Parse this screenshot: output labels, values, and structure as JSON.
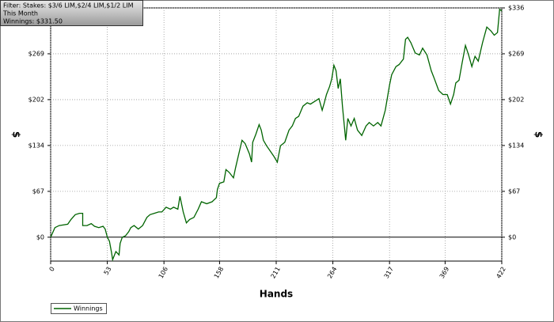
{
  "info": {
    "filter": "Filter: Stakes: $3/6 LIM,$2/4 LIM,$1/2 LIM",
    "period": "This Month",
    "winnings": "Winnings: $331.50"
  },
  "chart_data": {
    "type": "line",
    "x_label": "Hands",
    "y_label": "$",
    "x": [
      0,
      4,
      8,
      16,
      19,
      23,
      27,
      30,
      30,
      34,
      38,
      41,
      45,
      49,
      51,
      53,
      55,
      57,
      58,
      61,
      64,
      65,
      67,
      70,
      73,
      75,
      78,
      82,
      86,
      90,
      93,
      97,
      101,
      104,
      108,
      112,
      115,
      119,
      121,
      124,
      127,
      130,
      134,
      138,
      141,
      146,
      151,
      155,
      156,
      158,
      162,
      164,
      167,
      171,
      173,
      176,
      179,
      182,
      186,
      188,
      189,
      192,
      195,
      197,
      199,
      202,
      206,
      209,
      212,
      215,
      219,
      223,
      226,
      229,
      232,
      236,
      240,
      243,
      247,
      251,
      254,
      256,
      258,
      261,
      263,
      265,
      267,
      269,
      271,
      273,
      276,
      278,
      281,
      284,
      287,
      291,
      295,
      298,
      302,
      306,
      309,
      313,
      317,
      319,
      323,
      326,
      330,
      332,
      334,
      337,
      341,
      345,
      348,
      352,
      356,
      359,
      363,
      367,
      371,
      374,
      377,
      379,
      382,
      385,
      388,
      391,
      394,
      397,
      400,
      404,
      408,
      412,
      415,
      418,
      420,
      422
    ],
    "series": [
      {
        "name": "Winnings",
        "color": "#006400",
        "values": [
          0,
          14,
          17,
          19,
          26,
          33,
          35,
          35,
          17,
          17,
          20,
          16,
          14,
          16,
          12,
          0,
          -6,
          -23,
          -33,
          -21,
          -26,
          -9,
          0,
          2,
          8,
          14,
          17,
          12,
          17,
          29,
          33,
          35,
          37,
          37,
          44,
          41,
          44,
          41,
          60,
          37,
          21,
          26,
          29,
          41,
          52,
          49,
          52,
          58,
          70,
          79,
          81,
          99,
          95,
          87,
          102,
          122,
          142,
          137,
          122,
          110,
          139,
          151,
          165,
          157,
          142,
          134,
          125,
          118,
          110,
          134,
          139,
          157,
          163,
          174,
          177,
          192,
          197,
          195,
          199,
          203,
          186,
          197,
          209,
          221,
          232,
          252,
          244,
          218,
          232,
          192,
          142,
          174,
          163,
          174,
          157,
          149,
          163,
          168,
          163,
          168,
          163,
          186,
          223,
          238,
          250,
          253,
          261,
          290,
          293,
          285,
          270,
          267,
          277,
          267,
          244,
          232,
          215,
          209,
          209,
          195,
          209,
          226,
          230,
          256,
          281,
          267,
          250,
          265,
          258,
          285,
          308,
          302,
          296,
          300,
          334,
          331.5
        ]
      }
    ],
    "xlim": [
      0,
      422
    ],
    "xticks": [
      0,
      53,
      106,
      158,
      211,
      264,
      317,
      369,
      422
    ],
    "ylim": [
      -35,
      336
    ],
    "yticks": [
      {
        "value": 0,
        "label": "$0"
      },
      {
        "value": 67.2,
        "label": "$67"
      },
      {
        "value": 134.4,
        "label": "$134"
      },
      {
        "value": 201.6,
        "label": "$202"
      },
      {
        "value": 268.8,
        "label": "$269"
      },
      {
        "value": 336,
        "label": "$336"
      }
    ],
    "grid": true,
    "legend": "bottom-left"
  }
}
